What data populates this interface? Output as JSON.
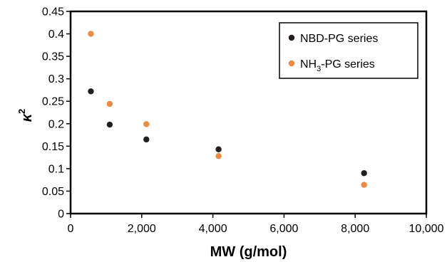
{
  "chart_data": {
    "type": "scatter",
    "xlabel": "MW (g/mol)",
    "ylabel": {
      "base": "κ",
      "superscript": "2"
    },
    "xlim": [
      0,
      10000
    ],
    "ylim": [
      0,
      0.45
    ],
    "x_ticks": [
      0,
      2000,
      4000,
      6000,
      8000,
      10000
    ],
    "x_tick_labels": [
      "0",
      "2,000",
      "4,000",
      "6,000",
      "8,000",
      "10,000"
    ],
    "y_ticks": [
      0,
      0.05,
      0.1,
      0.15,
      0.2,
      0.25,
      0.3,
      0.35,
      0.4,
      0.45
    ],
    "y_tick_labels": [
      "0",
      "0.05",
      "0.1",
      "0.15",
      "0.2",
      "0.25",
      "0.3",
      "0.35",
      "0.4",
      "0.45"
    ],
    "grid": false,
    "legend_position": "top-right",
    "series": [
      {
        "name": "NBD-PG series",
        "name_parts": {
          "pre": "NBD-PG series",
          "sub": "",
          "post": ""
        },
        "color": "#231f20",
        "points": [
          {
            "x": 570,
            "y": 0.272
          },
          {
            "x": 1100,
            "y": 0.198
          },
          {
            "x": 2130,
            "y": 0.165
          },
          {
            "x": 4160,
            "y": 0.143
          },
          {
            "x": 8250,
            "y": 0.09
          }
        ]
      },
      {
        "name": "NH3-PG series",
        "name_parts": {
          "pre": "NH",
          "sub": "3",
          "post": "-PG series"
        },
        "color": "#f08a40",
        "points": [
          {
            "x": 570,
            "y": 0.4
          },
          {
            "x": 1100,
            "y": 0.244
          },
          {
            "x": 2130,
            "y": 0.199
          },
          {
            "x": 4160,
            "y": 0.128
          },
          {
            "x": 8250,
            "y": 0.064
          }
        ]
      }
    ]
  }
}
